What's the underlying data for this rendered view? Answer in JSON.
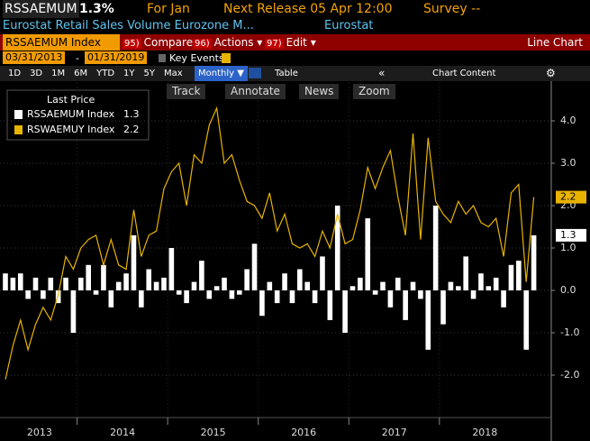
{
  "header": {
    "ticker": "RSSAEMUM",
    "change": "1.3%",
    "period": "For Jan",
    "next_release": "Next Release 05 Apr 12:00",
    "survey": "Survey --",
    "description": "Eurostat Retail Sales Volume Eurozone M...",
    "source": "Eurostat"
  },
  "toolbar": {
    "security": "RSSAEMUM Index",
    "menu": [
      {
        "key": "95)",
        "label": "Compare"
      },
      {
        "key": "96)",
        "label": "Actions ▾"
      },
      {
        "key": "97)",
        "label": "Edit ▾"
      }
    ],
    "view": "Line Chart"
  },
  "range": {
    "start": "03/31/2013",
    "separator": "-",
    "end": "01/31/2019",
    "key_events": "Key Events"
  },
  "periods": [
    "1D",
    "3D",
    "1M",
    "6M",
    "YTD",
    "1Y",
    "5Y",
    "Max"
  ],
  "frequency": "Monthly ▼",
  "table": "Table",
  "collapse": "«",
  "chart_content": "Chart Content",
  "settings": "⚙",
  "chart_tools": [
    "Track",
    "Annotate",
    "News",
    "Zoom"
  ],
  "chart_data": {
    "type": "combo",
    "legend_title": "Last Price",
    "xlim": [
      0,
      70
    ],
    "xticks": [
      {
        "value": -2,
        "label": "2013"
      },
      {
        "value": 10,
        "label": "2014"
      },
      {
        "value": 22,
        "label": "2015"
      },
      {
        "value": 34,
        "label": "2016"
      },
      {
        "value": 46,
        "label": "2017"
      },
      {
        "value": 58,
        "label": "2018"
      }
    ],
    "ylim": [
      -3,
      4.9
    ],
    "yticks": [
      {
        "value": -2,
        "label": "-2.0"
      },
      {
        "value": -1,
        "label": "-1.0"
      },
      {
        "value": 0,
        "label": "0.0"
      },
      {
        "value": 1,
        "label": "1.0"
      },
      {
        "value": 2,
        "label": "2.0"
      },
      {
        "value": 3,
        "label": "3.0"
      },
      {
        "value": 4,
        "label": "4.0"
      }
    ],
    "grid": true,
    "series": [
      {
        "name": "RSSAEMUM Index",
        "type": "bar",
        "color": "#ffffff",
        "last_value_label": "1.3",
        "values": [
          0.4,
          0.3,
          0.4,
          -0.2,
          0.3,
          -0.2,
          0.3,
          -0.3,
          0.3,
          -1.0,
          0.3,
          0.6,
          -0.1,
          0.6,
          -0.4,
          0.2,
          0.4,
          1.3,
          -0.4,
          0.5,
          0.2,
          0.3,
          1.0,
          -0.1,
          -0.3,
          0.2,
          0.7,
          -0.2,
          0.1,
          0.3,
          -0.2,
          -0.1,
          0.5,
          1.1,
          -0.6,
          0.2,
          -0.3,
          0.4,
          -0.3,
          0.5,
          0.2,
          -0.3,
          0.8,
          -0.7,
          2.0,
          -1.0,
          0.1,
          0.3,
          1.7,
          -0.1,
          0.2,
          -0.4,
          0.3,
          -0.7,
          0.2,
          -0.2,
          -1.4,
          2.0,
          -0.8,
          0.2,
          0.1,
          0.8,
          -0.2,
          0.4,
          0.1,
          0.3,
          -0.4,
          0.6,
          0.7,
          -1.4,
          1.3
        ]
      },
      {
        "name": "RSWAEMUY Index",
        "type": "line",
        "color": "#e8b400",
        "last_value_label": "2.2",
        "values": [
          -2.1,
          -1.3,
          -0.7,
          -1.4,
          -0.8,
          -0.4,
          -0.7,
          -0.1,
          0.8,
          0.5,
          1.0,
          1.2,
          1.3,
          0.6,
          1.2,
          0.6,
          0.5,
          1.9,
          0.8,
          1.3,
          1.4,
          2.4,
          2.8,
          3.0,
          2.0,
          3.2,
          3.0,
          3.9,
          4.3,
          3.0,
          3.2,
          2.6,
          2.1,
          2.0,
          1.7,
          2.3,
          1.4,
          1.8,
          1.1,
          1.0,
          1.1,
          0.8,
          1.4,
          1.0,
          1.8,
          1.1,
          1.2,
          1.9,
          2.9,
          2.4,
          2.9,
          3.3,
          2.2,
          1.3,
          3.7,
          1.2,
          3.6,
          2.1,
          1.8,
          1.6,
          2.1,
          1.8,
          2.0,
          1.6,
          1.5,
          1.7,
          0.8,
          2.3,
          2.5,
          0.2,
          2.2
        ]
      }
    ]
  }
}
